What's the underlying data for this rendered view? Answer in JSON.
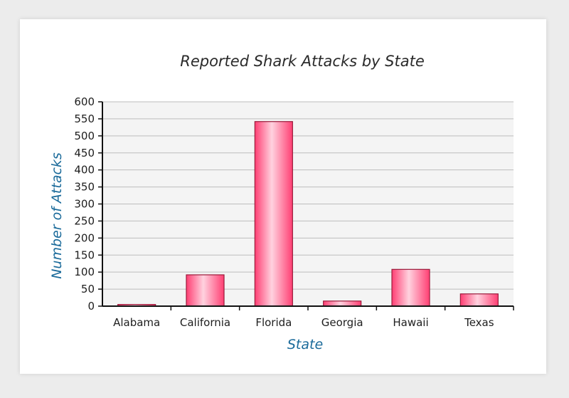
{
  "chart_data": {
    "type": "bar",
    "title": "Reported Shark Attacks by State",
    "xlabel": "State",
    "ylabel": "Number of Attacks",
    "categories": [
      "Alabama",
      "California",
      "Florida",
      "Georgia",
      "Hawaii",
      "Texas"
    ],
    "values": [
      5,
      92,
      542,
      15,
      108,
      36
    ],
    "ylim": [
      0,
      600
    ],
    "yticks": [
      "0",
      "50",
      "100",
      "150",
      "200",
      "250",
      "300",
      "350",
      "400",
      "450",
      "500",
      "550",
      "600"
    ],
    "ytick_values": [
      0,
      50,
      100,
      150,
      200,
      250,
      300,
      350,
      400,
      450,
      500,
      550,
      600
    ],
    "grid": true,
    "legend": "none",
    "bar_color": "#ff3f73",
    "bar_highlight": "#ffd2df",
    "bar_stroke": "#9a1a3a",
    "plot_background": "#f4f4f4",
    "grid_color": "#bdbdbd",
    "title_color": "#2a2a2a",
    "axis_title_color": "#1a6a9a"
  }
}
